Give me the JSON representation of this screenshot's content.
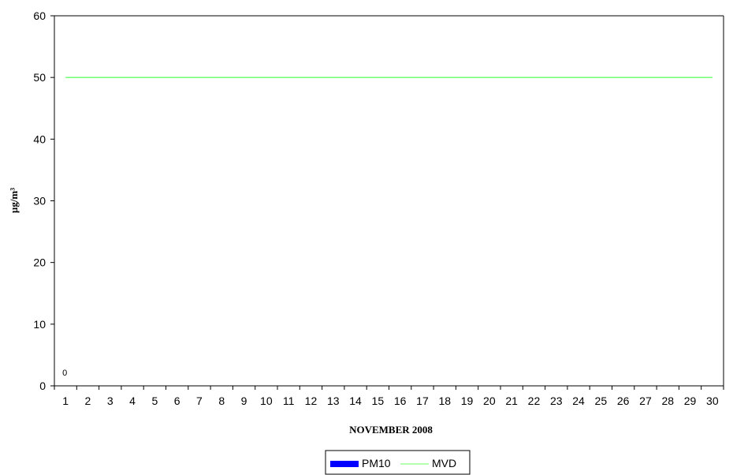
{
  "chart_data": {
    "type": "bar",
    "title": "",
    "xlabel": "NOVEMBER 2008",
    "ylabel": "µg/m³",
    "ylim": [
      0,
      60
    ],
    "yticks": [
      0,
      10,
      20,
      30,
      40,
      50,
      60
    ],
    "categories": [
      "1",
      "2",
      "3",
      "4",
      "5",
      "6",
      "7",
      "8",
      "9",
      "10",
      "11",
      "12",
      "13",
      "14",
      "15",
      "16",
      "17",
      "18",
      "19",
      "20",
      "21",
      "22",
      "23",
      "24",
      "25",
      "26",
      "27",
      "28",
      "29",
      "30"
    ],
    "series": [
      {
        "name": "PM10",
        "type": "bar",
        "color": "#0000ff",
        "values": [
          0,
          null,
          null,
          null,
          null,
          null,
          null,
          null,
          null,
          null,
          null,
          null,
          null,
          null,
          null,
          null,
          null,
          null,
          null,
          null,
          null,
          null,
          null,
          null,
          null,
          null,
          null,
          null,
          null,
          null
        ],
        "data_labels": [
          "0"
        ]
      },
      {
        "name": "MVD",
        "type": "line",
        "color": "#66ff66",
        "values": [
          50,
          50,
          50,
          50,
          50,
          50,
          50,
          50,
          50,
          50,
          50,
          50,
          50,
          50,
          50,
          50,
          50,
          50,
          50,
          50,
          50,
          50,
          50,
          50,
          50,
          50,
          50,
          50,
          50,
          50
        ]
      }
    ],
    "grid": false,
    "legend_position": "bottom"
  }
}
